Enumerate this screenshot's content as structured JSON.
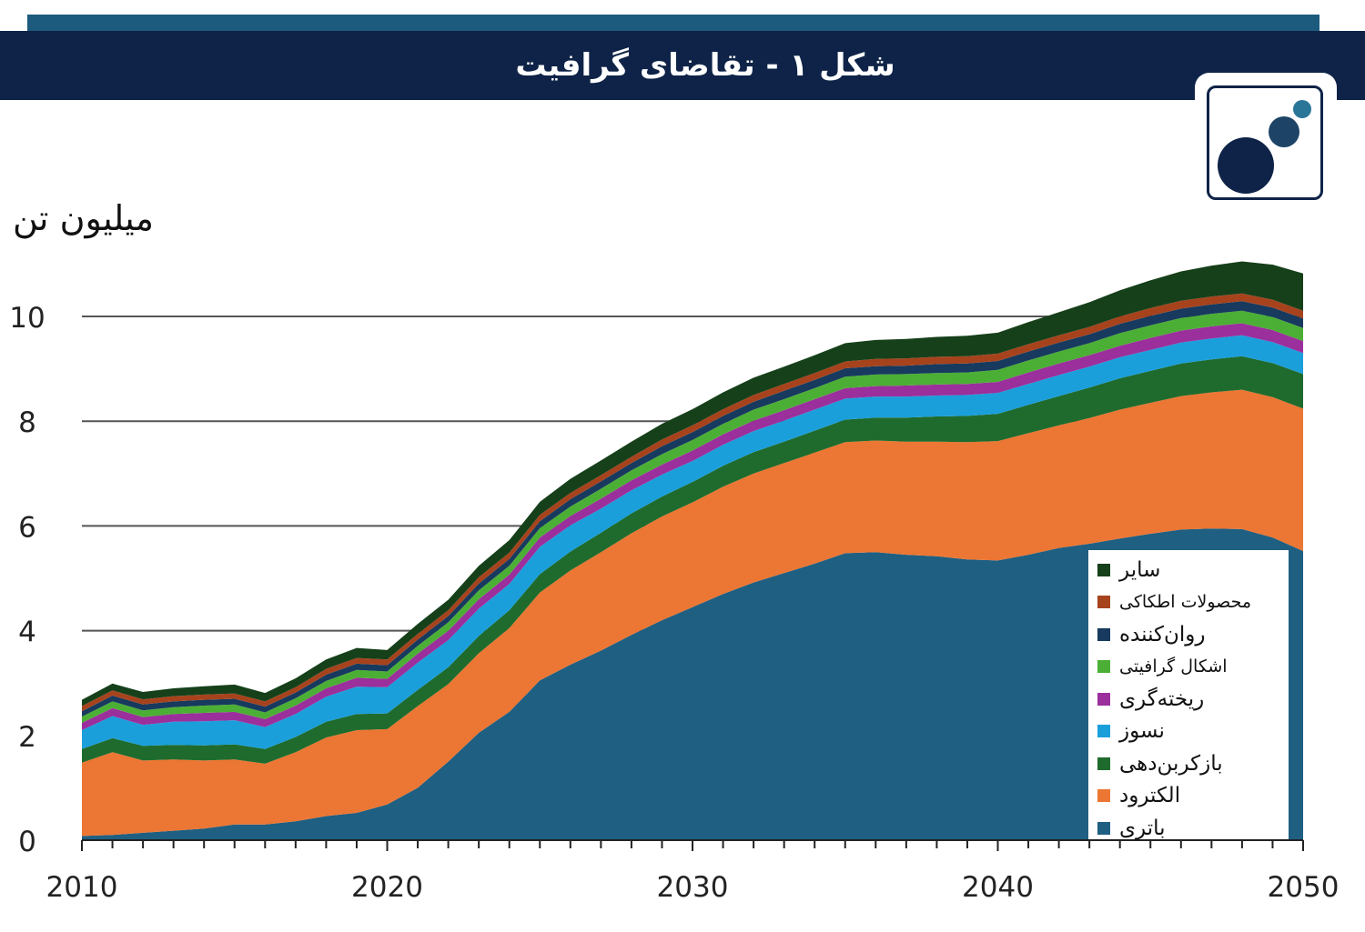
{
  "header": {
    "title": "شکل ۱ - تقاضای گرافیت"
  },
  "logo": {
    "icon": "bubbles-logo-icon"
  },
  "chart_data": {
    "type": "area",
    "ylabel": "میلیون تن",
    "xlim": [
      2010,
      2050
    ],
    "ylim": [
      0,
      11
    ],
    "y_ticks": [
      "0",
      "2",
      "4",
      "6",
      "8",
      "10"
    ],
    "x_ticks": [
      "2010",
      "2020",
      "2030",
      "2040",
      "2050"
    ],
    "gridlines": [
      4,
      6,
      8,
      10
    ],
    "legend_position": "bottom-right",
    "x": [
      2010,
      2011,
      2012,
      2013,
      2014,
      2015,
      2016,
      2017,
      2018,
      2019,
      2020,
      2021,
      2022,
      2023,
      2024,
      2025,
      2026,
      2027,
      2028,
      2029,
      2030,
      2031,
      2032,
      2033,
      2034,
      2035,
      2036,
      2037,
      2038,
      2039,
      2040,
      2041,
      2042,
      2043,
      2044,
      2045,
      2046,
      2047,
      2048,
      2049,
      2050
    ],
    "series": [
      {
        "name": "باتری",
        "color": "#1f5f82",
        "values": [
          0.08,
          0.1,
          0.14,
          0.18,
          0.22,
          0.3,
          0.3,
          0.36,
          0.46,
          0.52,
          0.68,
          1.0,
          1.5,
          2.05,
          2.45,
          3.05,
          3.35,
          3.62,
          3.92,
          4.2,
          4.45,
          4.7,
          4.92,
          5.1,
          5.28,
          5.48,
          5.5,
          5.45,
          5.42,
          5.36,
          5.34,
          5.45,
          5.58,
          5.66,
          5.76,
          5.85,
          5.93,
          5.95,
          5.94,
          5.78,
          5.52
        ]
      },
      {
        "name": "الکترود",
        "color": "#ec7633",
        "values": [
          1.4,
          1.58,
          1.38,
          1.36,
          1.3,
          1.24,
          1.16,
          1.32,
          1.5,
          1.58,
          1.44,
          1.56,
          1.48,
          1.52,
          1.6,
          1.68,
          1.8,
          1.88,
          1.94,
          1.98,
          2.0,
          2.05,
          2.08,
          2.1,
          2.12,
          2.12,
          2.13,
          2.16,
          2.19,
          2.24,
          2.28,
          2.32,
          2.34,
          2.4,
          2.46,
          2.5,
          2.55,
          2.6,
          2.66,
          2.68,
          2.72
        ]
      },
      {
        "name": "بازکربن‌دهی",
        "color": "#1f6b2d",
        "values": [
          0.26,
          0.27,
          0.28,
          0.28,
          0.29,
          0.29,
          0.28,
          0.29,
          0.3,
          0.31,
          0.3,
          0.31,
          0.32,
          0.33,
          0.34,
          0.35,
          0.36,
          0.37,
          0.38,
          0.38,
          0.39,
          0.4,
          0.41,
          0.41,
          0.42,
          0.43,
          0.44,
          0.46,
          0.48,
          0.5,
          0.52,
          0.54,
          0.56,
          0.58,
          0.6,
          0.61,
          0.62,
          0.63,
          0.64,
          0.65,
          0.66
        ]
      },
      {
        "name": "نسوز",
        "color": "#1a9fdb",
        "values": [
          0.36,
          0.42,
          0.4,
          0.44,
          0.46,
          0.46,
          0.42,
          0.44,
          0.48,
          0.52,
          0.5,
          0.52,
          0.52,
          0.52,
          0.5,
          0.52,
          0.5,
          0.46,
          0.44,
          0.42,
          0.4,
          0.4,
          0.4,
          0.4,
          0.4,
          0.4,
          0.4,
          0.4,
          0.4,
          0.4,
          0.4,
          0.4,
          0.4,
          0.4,
          0.4,
          0.4,
          0.4,
          0.4,
          0.4,
          0.4,
          0.4
        ]
      },
      {
        "name": "ریخته‌گری",
        "color": "#9b2f9c",
        "values": [
          0.14,
          0.15,
          0.15,
          0.15,
          0.16,
          0.16,
          0.15,
          0.16,
          0.16,
          0.17,
          0.16,
          0.17,
          0.18,
          0.18,
          0.18,
          0.18,
          0.18,
          0.19,
          0.19,
          0.19,
          0.2,
          0.2,
          0.2,
          0.2,
          0.2,
          0.2,
          0.2,
          0.21,
          0.21,
          0.21,
          0.21,
          0.22,
          0.22,
          0.22,
          0.22,
          0.23,
          0.23,
          0.23,
          0.23,
          0.23,
          0.23
        ]
      },
      {
        "name": "اشکال گرافیتی",
        "color": "#4caf35",
        "values": [
          0.12,
          0.13,
          0.13,
          0.13,
          0.14,
          0.14,
          0.13,
          0.14,
          0.14,
          0.15,
          0.14,
          0.15,
          0.16,
          0.17,
          0.17,
          0.18,
          0.18,
          0.19,
          0.19,
          0.2,
          0.2,
          0.2,
          0.21,
          0.21,
          0.21,
          0.22,
          0.22,
          0.22,
          0.22,
          0.22,
          0.23,
          0.23,
          0.23,
          0.23,
          0.24,
          0.24,
          0.24,
          0.24,
          0.24,
          0.25,
          0.25
        ]
      },
      {
        "name": "روان‌کننده",
        "color": "#173a5e",
        "values": [
          0.1,
          0.11,
          0.11,
          0.11,
          0.11,
          0.11,
          0.11,
          0.11,
          0.12,
          0.12,
          0.12,
          0.12,
          0.12,
          0.13,
          0.13,
          0.13,
          0.14,
          0.14,
          0.14,
          0.15,
          0.15,
          0.15,
          0.15,
          0.16,
          0.16,
          0.16,
          0.16,
          0.16,
          0.17,
          0.17,
          0.17,
          0.17,
          0.17,
          0.17,
          0.18,
          0.18,
          0.18,
          0.18,
          0.18,
          0.18,
          0.18
        ]
      },
      {
        "name": "محصولات اطکاکی",
        "color": "#a6431d",
        "values": [
          0.1,
          0.1,
          0.1,
          0.1,
          0.1,
          0.1,
          0.1,
          0.1,
          0.11,
          0.11,
          0.11,
          0.11,
          0.11,
          0.12,
          0.12,
          0.12,
          0.12,
          0.12,
          0.12,
          0.13,
          0.13,
          0.13,
          0.13,
          0.13,
          0.13,
          0.13,
          0.14,
          0.14,
          0.14,
          0.14,
          0.14,
          0.14,
          0.14,
          0.14,
          0.14,
          0.15,
          0.15,
          0.15,
          0.15,
          0.15,
          0.15
        ]
      },
      {
        "name": "سایر",
        "color": "#16401a",
        "values": [
          0.12,
          0.13,
          0.14,
          0.15,
          0.16,
          0.17,
          0.16,
          0.17,
          0.18,
          0.19,
          0.18,
          0.19,
          0.2,
          0.22,
          0.24,
          0.25,
          0.27,
          0.28,
          0.29,
          0.3,
          0.31,
          0.32,
          0.33,
          0.33,
          0.34,
          0.35,
          0.36,
          0.37,
          0.38,
          0.39,
          0.4,
          0.42,
          0.44,
          0.47,
          0.5,
          0.53,
          0.56,
          0.59,
          0.61,
          0.67,
          0.71
        ]
      }
    ]
  }
}
